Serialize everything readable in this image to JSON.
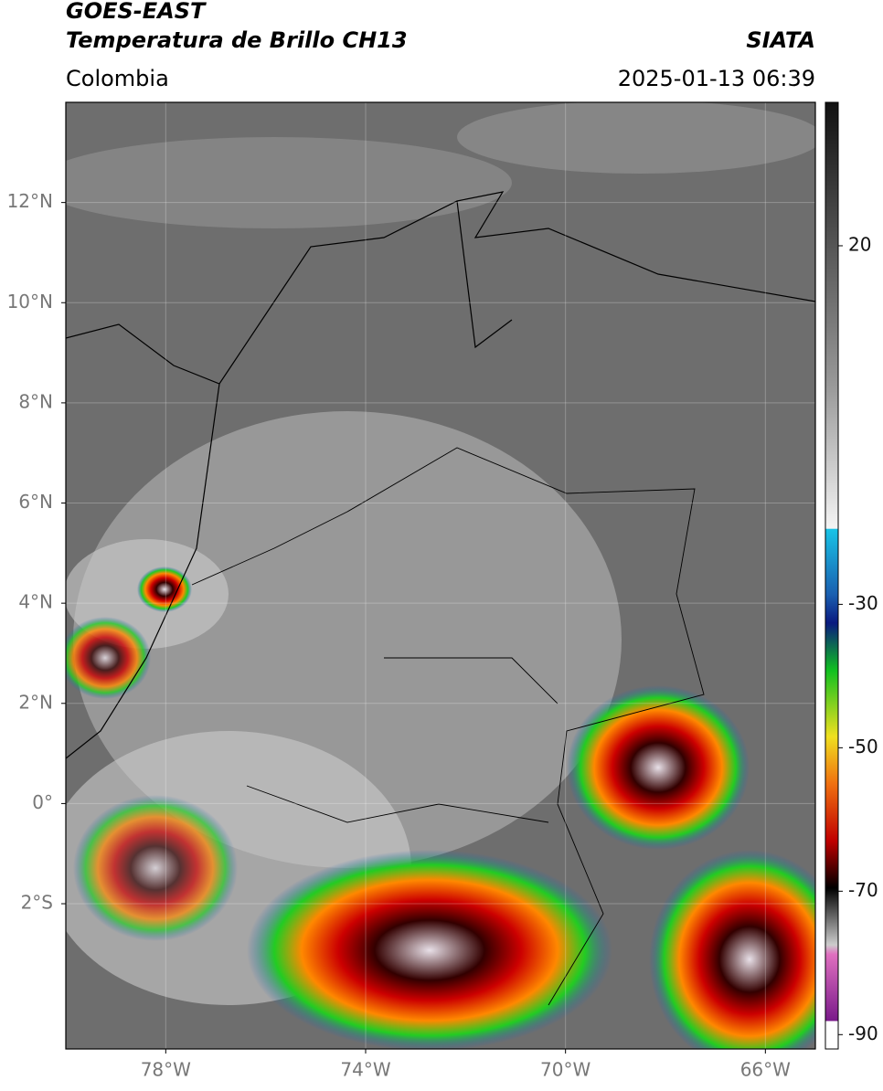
{
  "header": {
    "title_line1": "GOES-EAST",
    "title_line2": "Temperatura de Brillo CH13",
    "source": "SIATA",
    "region": "Colombia",
    "datetime": "2025-01-13 06:39"
  },
  "map": {
    "xlim": [
      -80,
      -65
    ],
    "ylim": [
      -4.9,
      14
    ],
    "xticks": [
      {
        "value": -78,
        "label": "78°W"
      },
      {
        "value": -74,
        "label": "74°W"
      },
      {
        "value": -70,
        "label": "70°W"
      },
      {
        "value": -66,
        "label": "66°W"
      }
    ],
    "yticks": [
      {
        "value": 12,
        "label": "12°N"
      },
      {
        "value": 10,
        "label": "10°N"
      },
      {
        "value": 8,
        "label": "8°N"
      },
      {
        "value": 6,
        "label": "6°N"
      },
      {
        "value": 4,
        "label": "4°N"
      },
      {
        "value": 2,
        "label": "2°N"
      },
      {
        "value": 0,
        "label": "0°"
      },
      {
        "value": -2,
        "label": "2°S"
      }
    ]
  },
  "colorbar": {
    "lim": [
      -92,
      40
    ],
    "ticks": [
      20,
      -30,
      -50,
      -70,
      -90
    ]
  }
}
